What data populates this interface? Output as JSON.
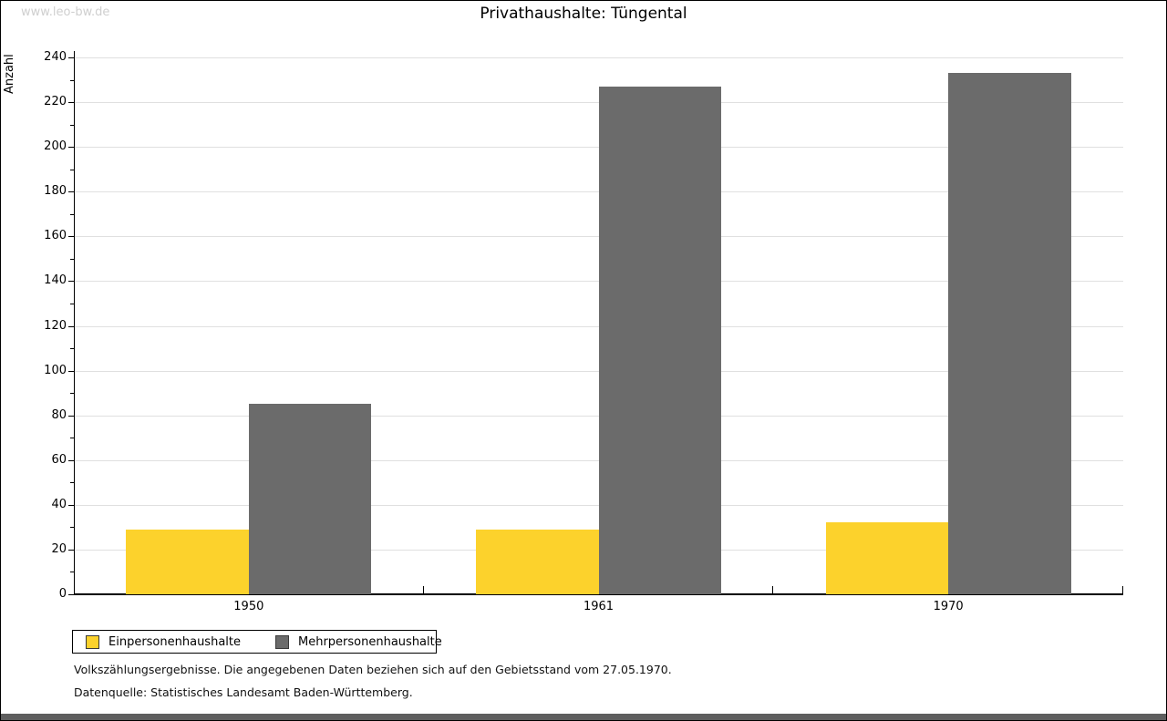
{
  "watermark": "www.leo-bw.de",
  "title": "Privathaushalte: Tüngental",
  "chart_data": {
    "type": "bar",
    "title": "Privathaushalte: Tüngental",
    "xlabel": "",
    "ylabel": "Anzahl",
    "categories": [
      "1950",
      "1961",
      "1970"
    ],
    "series": [
      {
        "name": "Einpersonenhaushalte",
        "color": "#FCD22C",
        "values": [
          29,
          29,
          32
        ]
      },
      {
        "name": "Mehrpersonenhaushalte",
        "color": "#6B6B6B",
        "values": [
          85,
          227,
          233
        ]
      }
    ],
    "ylim": [
      0,
      240
    ],
    "ytick_step": 20,
    "minor_tick_step": 10,
    "grid": true,
    "legend_position": "bottom-left"
  },
  "footnotes": [
    "Volkszählungsergebnisse. Die angegebenen Daten beziehen sich auf den Gebietsstand vom 27.05.1970.",
    "Datenquelle: Statistisches Landesamt Baden-Württemberg."
  ],
  "colors": {
    "grid": "#E0E0E0",
    "axis": "#000000",
    "watermark": "#CFCFCF",
    "bottom_strip": "#5E5E5E",
    "background": "#FFFFFF"
  }
}
